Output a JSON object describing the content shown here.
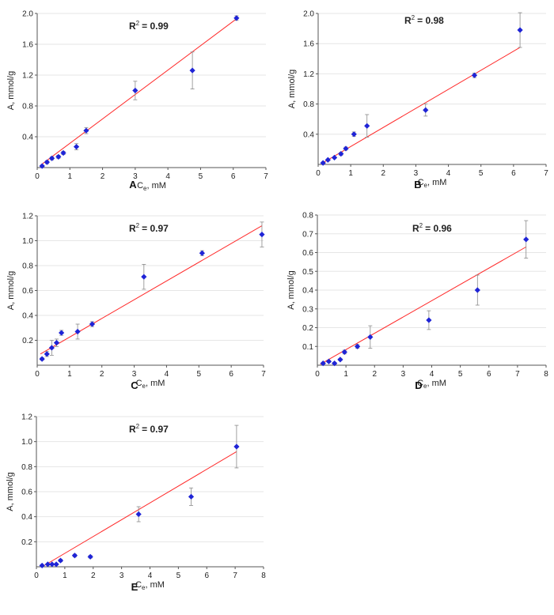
{
  "chart_data": [
    {
      "type": "scatter",
      "panel_label": "A",
      "r2_label": "R",
      "r2_exp": "2",
      "r2_value": "= 0.99",
      "ylabel": "A, mmol/g",
      "xlabel_main": "C",
      "xlabel_sub": "e",
      "xlabel_rest": ", mM",
      "xlim": [
        0,
        7
      ],
      "ylim": [
        0,
        2.0
      ],
      "xticks": [
        0,
        1,
        2,
        3,
        4,
        5,
        6,
        7
      ],
      "yticks": [
        0.4,
        0.8,
        1.2,
        1.6,
        2.0
      ],
      "yticks_text": [
        "0.4",
        "0.8",
        "1.2",
        "1.6",
        "2.0"
      ],
      "grid": true,
      "points": [
        {
          "x": 0.15,
          "y": 0.02,
          "err": 0.01
        },
        {
          "x": 0.3,
          "y": 0.07,
          "err": 0.02
        },
        {
          "x": 0.45,
          "y": 0.12,
          "err": 0.02
        },
        {
          "x": 0.65,
          "y": 0.14,
          "err": 0.02
        },
        {
          "x": 0.8,
          "y": 0.19,
          "err": 0.02
        },
        {
          "x": 1.2,
          "y": 0.27,
          "err": 0.04
        },
        {
          "x": 1.5,
          "y": 0.48,
          "err": 0.04
        },
        {
          "x": 3.0,
          "y": 1.0,
          "err": 0.12
        },
        {
          "x": 4.75,
          "y": 1.26,
          "err": 0.24
        },
        {
          "x": 6.1,
          "y": 1.94,
          "err": 0.03
        }
      ],
      "fit": {
        "x": [
          0.1,
          6.1
        ],
        "y": [
          0.03,
          1.93
        ]
      }
    },
    {
      "type": "scatter",
      "panel_label": "B",
      "r2_label": "R",
      "r2_exp": "2",
      "r2_value": "= 0.98",
      "ylabel": "A, mmol/g",
      "xlabel_main": "C",
      "xlabel_sub": "e",
      "xlabel_rest": ", mM",
      "xlim": [
        0,
        7
      ],
      "ylim": [
        0,
        2.0
      ],
      "xticks": [
        0,
        1,
        2,
        3,
        4,
        5,
        6,
        7
      ],
      "yticks": [
        0.4,
        0.8,
        1.2,
        1.6,
        2.0
      ],
      "yticks_text": [
        "0.4",
        "0.8",
        "1.2",
        "1.6",
        "2.0"
      ],
      "grid": true,
      "points": [
        {
          "x": 0.15,
          "y": 0.02,
          "err": 0.01
        },
        {
          "x": 0.3,
          "y": 0.06,
          "err": 0.01
        },
        {
          "x": 0.5,
          "y": 0.09,
          "err": 0.01
        },
        {
          "x": 0.7,
          "y": 0.14,
          "err": 0.02
        },
        {
          "x": 0.85,
          "y": 0.21,
          "err": 0.02
        },
        {
          "x": 1.1,
          "y": 0.4,
          "err": 0.03
        },
        {
          "x": 1.5,
          "y": 0.51,
          "err": 0.15
        },
        {
          "x": 3.3,
          "y": 0.72,
          "err": 0.08
        },
        {
          "x": 4.8,
          "y": 1.18,
          "err": 0.03
        },
        {
          "x": 6.2,
          "y": 1.78,
          "err": 0.23
        }
      ],
      "fit": {
        "x": [
          0.1,
          6.2
        ],
        "y": [
          0.01,
          1.55
        ]
      }
    },
    {
      "type": "scatter",
      "panel_label": "C",
      "r2_label": "R",
      "r2_exp": "2",
      "r2_value": "= 0.97",
      "ylabel": "A, mmol/g",
      "xlabel_main": "C",
      "xlabel_sub": "e",
      "xlabel_rest": ", mM",
      "xlim": [
        0,
        7
      ],
      "ylim": [
        0,
        1.2
      ],
      "xticks": [
        0,
        1,
        2,
        3,
        4,
        5,
        6,
        7
      ],
      "yticks": [
        0.2,
        0.4,
        0.6,
        0.8,
        1.0,
        1.2
      ],
      "yticks_text": [
        "0.2",
        "0.4",
        "0.6",
        "0.8",
        "1.0",
        "1.2"
      ],
      "grid": true,
      "points": [
        {
          "x": 0.15,
          "y": 0.05,
          "err": 0.01
        },
        {
          "x": 0.3,
          "y": 0.09,
          "err": 0.02
        },
        {
          "x": 0.45,
          "y": 0.14,
          "err": 0.06
        },
        {
          "x": 0.6,
          "y": 0.18,
          "err": 0.03
        },
        {
          "x": 0.75,
          "y": 0.26,
          "err": 0.02
        },
        {
          "x": 1.25,
          "y": 0.27,
          "err": 0.06
        },
        {
          "x": 1.7,
          "y": 0.33,
          "err": 0.02
        },
        {
          "x": 3.3,
          "y": 0.71,
          "err": 0.1
        },
        {
          "x": 5.1,
          "y": 0.9,
          "err": 0.02
        },
        {
          "x": 6.95,
          "y": 1.05,
          "err": 0.1
        }
      ],
      "fit": {
        "x": [
          0.1,
          6.95
        ],
        "y": [
          0.09,
          1.12
        ]
      }
    },
    {
      "type": "scatter",
      "panel_label": "D",
      "r2_label": "R",
      "r2_exp": "2",
      "r2_value": "= 0.96",
      "ylabel": "A, mmol/g",
      "xlabel_main": "C",
      "xlabel_sub": "e",
      "xlabel_rest": ", mM",
      "xlim": [
        0,
        8
      ],
      "ylim": [
        0,
        0.8
      ],
      "xticks": [
        0,
        1,
        2,
        3,
        4,
        5,
        6,
        7,
        8
      ],
      "yticks": [
        0.1,
        0.2,
        0.3,
        0.4,
        0.5,
        0.6,
        0.7,
        0.8
      ],
      "yticks_text": [
        "0.1",
        "0.2",
        "0.3",
        "0.4",
        "0.5",
        "0.6",
        "0.7",
        "0.8"
      ],
      "grid": true,
      "points": [
        {
          "x": 0.2,
          "y": 0.01,
          "err": 0.005
        },
        {
          "x": 0.4,
          "y": 0.02,
          "err": 0.005
        },
        {
          "x": 0.6,
          "y": 0.01,
          "err": 0.005
        },
        {
          "x": 0.8,
          "y": 0.03,
          "err": 0.005
        },
        {
          "x": 0.95,
          "y": 0.07,
          "err": 0.01
        },
        {
          "x": 1.4,
          "y": 0.1,
          "err": 0.01
        },
        {
          "x": 1.85,
          "y": 0.15,
          "err": 0.06
        },
        {
          "x": 3.9,
          "y": 0.24,
          "err": 0.05
        },
        {
          "x": 5.6,
          "y": 0.4,
          "err": 0.08
        },
        {
          "x": 7.3,
          "y": 0.67,
          "err": 0.1
        }
      ],
      "fit": {
        "x": [
          0.1,
          7.3
        ],
        "y": [
          0.005,
          0.63
        ]
      }
    },
    {
      "type": "scatter",
      "panel_label": "E",
      "r2_label": "R",
      "r2_exp": "2",
      "r2_value": "= 0.97",
      "ylabel": "A, mmol/g",
      "xlabel_main": "C",
      "xlabel_sub": "e",
      "xlabel_rest": ", mM",
      "xlim": [
        0,
        8
      ],
      "ylim": [
        0,
        1.2
      ],
      "xticks": [
        0,
        1,
        2,
        3,
        4,
        5,
        6,
        7,
        8
      ],
      "yticks": [
        0.2,
        0.4,
        0.6,
        0.8,
        1.0,
        1.2
      ],
      "yticks_text": [
        "0.2",
        "0.4",
        "0.6",
        "0.8",
        "1.0",
        "1.2"
      ],
      "grid": true,
      "points": [
        {
          "x": 0.2,
          "y": 0.01,
          "err": 0.005
        },
        {
          "x": 0.4,
          "y": 0.02,
          "err": 0.005
        },
        {
          "x": 0.55,
          "y": 0.02,
          "err": 0.005
        },
        {
          "x": 0.7,
          "y": 0.02,
          "err": 0.005
        },
        {
          "x": 0.85,
          "y": 0.05,
          "err": 0.01
        },
        {
          "x": 1.35,
          "y": 0.09,
          "err": 0.01
        },
        {
          "x": 1.9,
          "y": 0.08,
          "err": 0.01
        },
        {
          "x": 3.6,
          "y": 0.42,
          "err": 0.06
        },
        {
          "x": 5.45,
          "y": 0.56,
          "err": 0.07
        },
        {
          "x": 7.05,
          "y": 0.96,
          "err": 0.17
        }
      ],
      "fit": {
        "x": [
          0.2,
          7.05
        ],
        "y": [
          0.0,
          0.92
        ]
      }
    }
  ]
}
